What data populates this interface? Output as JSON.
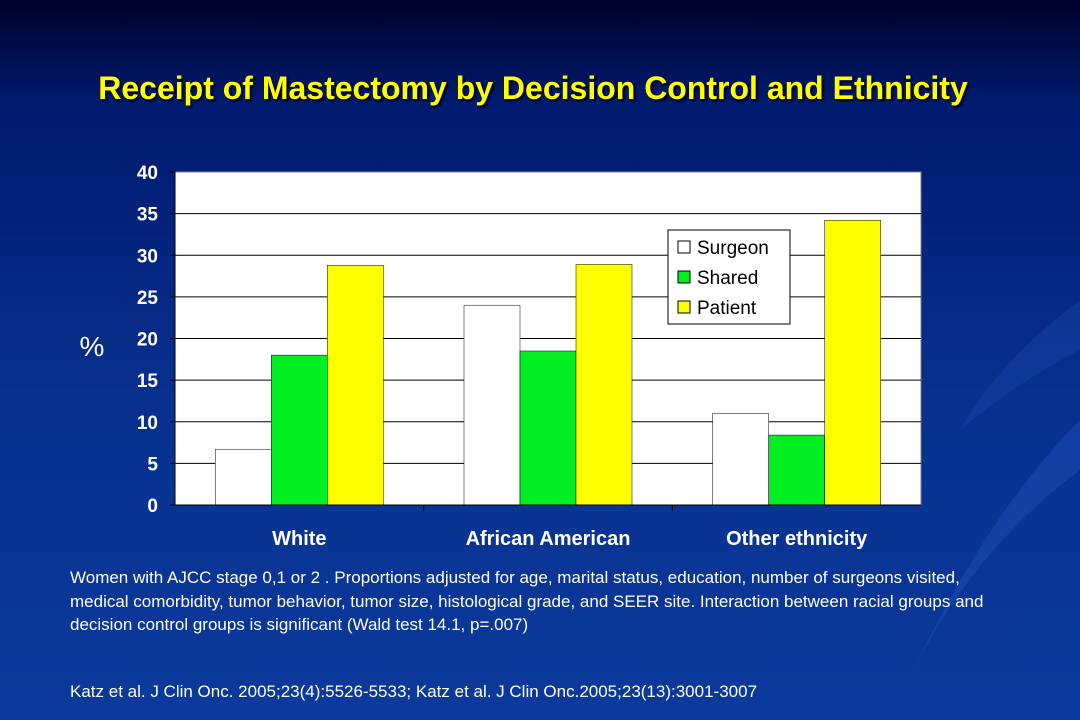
{
  "slide": {
    "title": "Receipt of Mastectomy by Decision Control and Ethnicity",
    "caption": "Women with AJCC stage 0,1 or 2 .  Proportions adjusted for age, marital status, education, number of surgeons visited, medical comorbidity, tumor behavior, tumor size, histological grade, and SEER site.  Interaction between racial groups and decision control groups is significant (Wald test 14.1, p=.007)",
    "citation": "Katz et al. J Clin Onc. 2005;23(4):5526-5533; Katz et al. J Clin Onc.2005;23(13):3001-3007"
  },
  "chart_data": {
    "type": "bar",
    "title": "",
    "xlabel": "",
    "ylabel": "%",
    "ylim": [
      0,
      40
    ],
    "yticks": [
      "0",
      "5",
      "10",
      "15",
      "20",
      "25",
      "30",
      "35",
      "40"
    ],
    "categories": [
      "White",
      "African American",
      "Other ethnicity"
    ],
    "series": [
      {
        "name": "Surgeon",
        "color": "#ffffff",
        "values": [
          6.7,
          24.0,
          11.0
        ]
      },
      {
        "name": "Shared",
        "color": "#00ee22",
        "values": [
          18.0,
          18.5,
          8.4
        ]
      },
      {
        "name": "Patient",
        "color": "#ffff00",
        "values": [
          28.8,
          28.9,
          34.2
        ]
      }
    ],
    "grid": true,
    "legend": "top-right"
  }
}
